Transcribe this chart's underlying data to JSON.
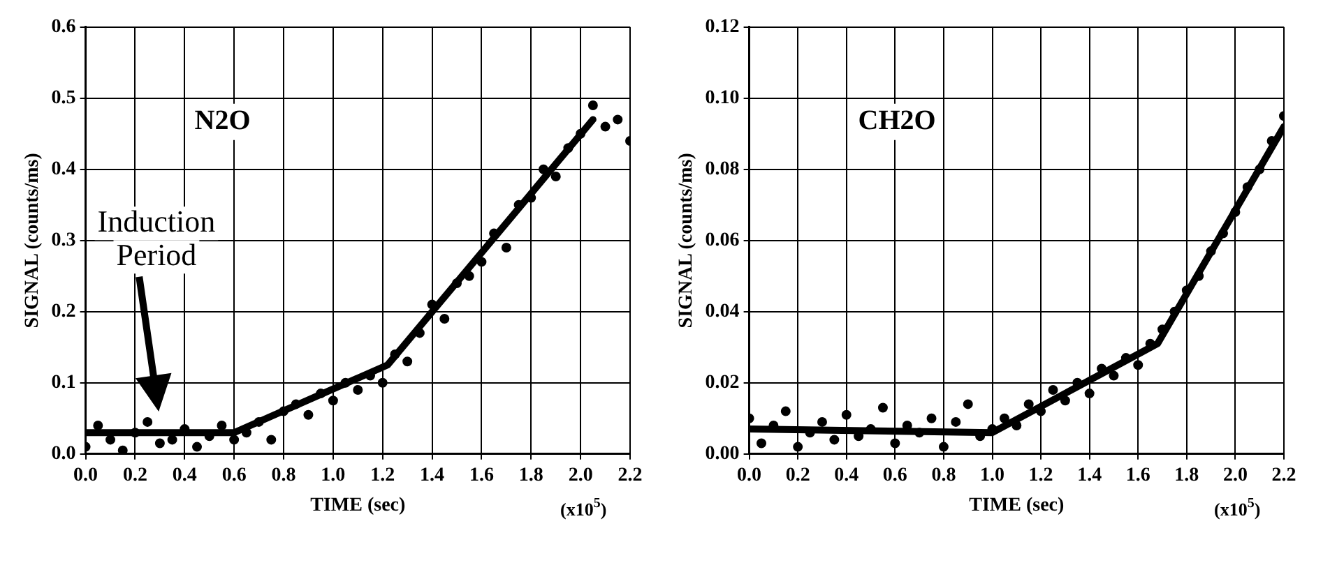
{
  "chart_data": [
    {
      "type": "scatter",
      "xlabel": "TIME (sec)",
      "ylabel": "SIGNAL (counts/ms)",
      "grid": true,
      "legend": false,
      "annotations": [
        "N2O",
        "(x10$^{5}$)",
        "Induction Period"
      ],
      "xlim": [
        0,
        2.2
      ],
      "ylim": [
        0,
        0.6
      ],
      "xticks": [
        {
          "value": 0,
          "label": "0.0"
        },
        0.2,
        0.4,
        0.6,
        0.8,
        {
          "value": 1,
          "label": "1.0"
        },
        1.2,
        1.4,
        1.6,
        1.8,
        {
          "value": 2,
          "label": "2.0"
        },
        2.2
      ],
      "yticks": [
        {
          "value": 0,
          "label": "0.0"
        },
        0.1,
        0.2,
        0.3,
        0.4,
        0.5,
        0.6
      ],
      "x": [
        0,
        0.05,
        0.1,
        0.15,
        0.2,
        0.25,
        0.3,
        0.35,
        0.4,
        0.45,
        0.5,
        0.55,
        0.6,
        0.65,
        0.7,
        0.75,
        0.8,
        0.85,
        0.9,
        0.95,
        1,
        1.05,
        1.1,
        1.15,
        1.2,
        1.25,
        1.3,
        1.35,
        1.4,
        1.45,
        1.5,
        1.55,
        1.6,
        1.65,
        1.7,
        1.75,
        1.8,
        1.85,
        1.9,
        1.95,
        2,
        2.05,
        2.1,
        2.15,
        2.2
      ],
      "series": [
        {
          "type": "scatter",
          "color": "#000000",
          "marker": "circle",
          "values": [
            0.01,
            0.04,
            0.02,
            0.005,
            0.03,
            0.045,
            0.015,
            0.02,
            0.035,
            0.01,
            0.025,
            0.04,
            0.02,
            0.03,
            0.045,
            0.02,
            0.06,
            0.07,
            0.055,
            0.085,
            0.075,
            0.1,
            0.09,
            0.11,
            0.1,
            0.14,
            0.13,
            0.17,
            0.21,
            0.19,
            0.24,
            0.25,
            0.27,
            0.31,
            0.29,
            0.35,
            0.36,
            0.4,
            0.39,
            0.43,
            0.45,
            0.49,
            0.46,
            0.47,
            0.44
          ]
        },
        {
          "type": "line",
          "color": "#000000",
          "marker": "none",
          "line_style": "solid",
          "x": [
            0,
            0.6,
            1.22,
            2.05
          ],
          "values": [
            0.03,
            0.03,
            0.125,
            0.47
          ]
        }
      ]
    },
    {
      "type": "scatter",
      "xlabel": "TIME (sec)",
      "ylabel": "SIGNAL (counts/ms)",
      "grid": true,
      "legend": false,
      "annotations": [
        "CH2O",
        "(x10$^{5}$)"
      ],
      "xlim": [
        0,
        2.2
      ],
      "ylim": [
        0,
        0.12
      ],
      "xticks": [
        {
          "value": 0,
          "label": "0.0"
        },
        0.2,
        0.4,
        0.6,
        0.8,
        {
          "value": 1,
          "label": "1.0"
        },
        1.2,
        1.4,
        1.6,
        1.8,
        {
          "value": 2,
          "label": "2.0"
        },
        2.2
      ],
      "yticks": [
        {
          "value": 0,
          "label": "0.00"
        },
        {
          "value": 0.02,
          "label": "0.02"
        },
        {
          "value": 0.04,
          "label": "0.04"
        },
        {
          "value": 0.06,
          "label": "0.06"
        },
        {
          "value": 0.08,
          "label": "0.08"
        },
        {
          "value": 0.1,
          "label": "0.10"
        },
        {
          "value": 0.12,
          "label": "0.12"
        }
      ],
      "x": [
        0,
        0.05,
        0.1,
        0.15,
        0.2,
        0.25,
        0.3,
        0.35,
        0.4,
        0.45,
        0.5,
        0.55,
        0.6,
        0.65,
        0.7,
        0.75,
        0.8,
        0.85,
        0.9,
        0.95,
        1,
        1.05,
        1.1,
        1.15,
        1.2,
        1.25,
        1.3,
        1.35,
        1.4,
        1.45,
        1.5,
        1.55,
        1.6,
        1.65,
        1.7,
        1.75,
        1.8,
        1.85,
        1.9,
        1.95,
        2,
        2.05,
        2.1,
        2.15,
        2.2
      ],
      "series": [
        {
          "type": "scatter",
          "color": "#000000",
          "marker": "circle",
          "values": [
            0.01,
            0.003,
            0.008,
            0.012,
            0.002,
            0.006,
            0.009,
            0.004,
            0.011,
            0.005,
            0.007,
            0.013,
            0.003,
            0.008,
            0.006,
            0.01,
            0.002,
            0.009,
            0.014,
            0.005,
            0.007,
            0.01,
            0.008,
            0.014,
            0.012,
            0.018,
            0.015,
            0.02,
            0.017,
            0.024,
            0.022,
            0.027,
            0.025,
            0.031,
            0.035,
            0.04,
            0.046,
            0.05,
            0.057,
            0.062,
            0.068,
            0.075,
            0.08,
            0.088,
            0.095
          ]
        },
        {
          "type": "line",
          "color": "#000000",
          "marker": "none",
          "line_style": "solid",
          "x": [
            0,
            1,
            1.68,
            2.2
          ],
          "values": [
            0.007,
            0.006,
            0.031,
            0.092
          ]
        }
      ]
    }
  ]
}
